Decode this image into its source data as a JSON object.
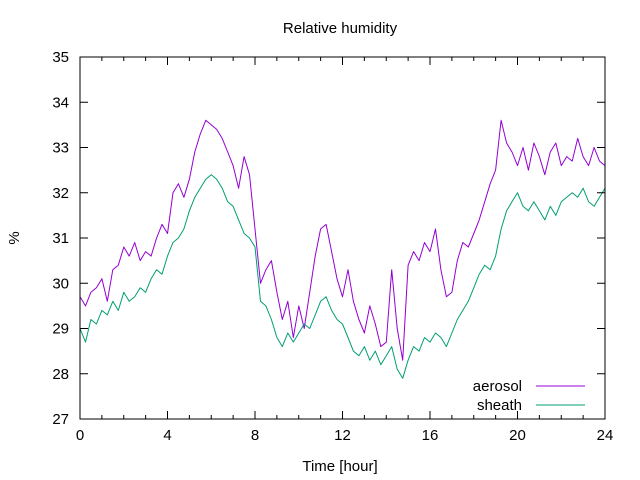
{
  "chart_data": {
    "type": "line",
    "title": "Relative humidity",
    "xlabel": "Time [hour]",
    "ylabel": "%",
    "xlim": [
      0,
      24
    ],
    "ylim": [
      27,
      35
    ],
    "xticks": [
      0,
      4,
      8,
      12,
      16,
      20,
      24
    ],
    "yticks": [
      27,
      28,
      29,
      30,
      31,
      32,
      33,
      34,
      35
    ],
    "grid": false,
    "legend": "bottom-right",
    "series": [
      {
        "name": "aerosol",
        "color": "#9400d3",
        "points": [
          [
            0.0,
            29.7
          ],
          [
            0.25,
            29.5
          ],
          [
            0.5,
            29.8
          ],
          [
            0.75,
            29.9
          ],
          [
            1.0,
            30.1
          ],
          [
            1.25,
            29.6
          ],
          [
            1.5,
            30.3
          ],
          [
            1.75,
            30.4
          ],
          [
            2.0,
            30.8
          ],
          [
            2.25,
            30.6
          ],
          [
            2.5,
            30.9
          ],
          [
            2.75,
            30.5
          ],
          [
            3.0,
            30.7
          ],
          [
            3.25,
            30.6
          ],
          [
            3.5,
            31.0
          ],
          [
            3.75,
            31.3
          ],
          [
            4.0,
            31.1
          ],
          [
            4.25,
            32.0
          ],
          [
            4.5,
            32.2
          ],
          [
            4.75,
            31.9
          ],
          [
            5.0,
            32.3
          ],
          [
            5.25,
            32.9
          ],
          [
            5.5,
            33.3
          ],
          [
            5.75,
            33.6
          ],
          [
            6.0,
            33.5
          ],
          [
            6.25,
            33.4
          ],
          [
            6.5,
            33.2
          ],
          [
            6.75,
            32.9
          ],
          [
            7.0,
            32.6
          ],
          [
            7.25,
            32.1
          ],
          [
            7.5,
            32.8
          ],
          [
            7.75,
            32.4
          ],
          [
            8.0,
            31.2
          ],
          [
            8.25,
            30.0
          ],
          [
            8.5,
            30.3
          ],
          [
            8.75,
            30.5
          ],
          [
            9.0,
            29.8
          ],
          [
            9.25,
            29.2
          ],
          [
            9.5,
            29.6
          ],
          [
            9.75,
            28.8
          ],
          [
            10.0,
            29.5
          ],
          [
            10.25,
            29.0
          ],
          [
            10.5,
            29.8
          ],
          [
            10.75,
            30.6
          ],
          [
            11.0,
            31.2
          ],
          [
            11.25,
            31.3
          ],
          [
            11.5,
            30.7
          ],
          [
            11.75,
            30.1
          ],
          [
            12.0,
            29.7
          ],
          [
            12.25,
            30.3
          ],
          [
            12.5,
            29.6
          ],
          [
            12.75,
            29.2
          ],
          [
            13.0,
            28.9
          ],
          [
            13.25,
            29.5
          ],
          [
            13.5,
            29.1
          ],
          [
            13.75,
            28.6
          ],
          [
            14.0,
            28.7
          ],
          [
            14.25,
            30.3
          ],
          [
            14.5,
            29.0
          ],
          [
            14.75,
            28.3
          ],
          [
            15.0,
            30.4
          ],
          [
            15.25,
            30.7
          ],
          [
            15.5,
            30.5
          ],
          [
            15.75,
            30.9
          ],
          [
            16.0,
            30.7
          ],
          [
            16.25,
            31.2
          ],
          [
            16.5,
            30.3
          ],
          [
            16.75,
            29.7
          ],
          [
            17.0,
            29.8
          ],
          [
            17.25,
            30.5
          ],
          [
            17.5,
            30.9
          ],
          [
            17.75,
            30.8
          ],
          [
            18.0,
            31.1
          ],
          [
            18.25,
            31.4
          ],
          [
            18.5,
            31.8
          ],
          [
            18.75,
            32.2
          ],
          [
            19.0,
            32.5
          ],
          [
            19.25,
            33.6
          ],
          [
            19.5,
            33.1
          ],
          [
            19.75,
            32.9
          ],
          [
            20.0,
            32.6
          ],
          [
            20.25,
            33.0
          ],
          [
            20.5,
            32.5
          ],
          [
            20.75,
            33.1
          ],
          [
            21.0,
            32.8
          ],
          [
            21.25,
            32.4
          ],
          [
            21.5,
            32.9
          ],
          [
            21.75,
            33.1
          ],
          [
            22.0,
            32.6
          ],
          [
            22.25,
            32.8
          ],
          [
            22.5,
            32.7
          ],
          [
            22.75,
            33.2
          ],
          [
            23.0,
            32.8
          ],
          [
            23.25,
            32.6
          ],
          [
            23.5,
            33.0
          ],
          [
            23.75,
            32.7
          ],
          [
            24.0,
            32.6
          ]
        ]
      },
      {
        "name": "sheath",
        "color": "#009e73",
        "points": [
          [
            0.0,
            29.0
          ],
          [
            0.25,
            28.7
          ],
          [
            0.5,
            29.2
          ],
          [
            0.75,
            29.1
          ],
          [
            1.0,
            29.4
          ],
          [
            1.25,
            29.3
          ],
          [
            1.5,
            29.6
          ],
          [
            1.75,
            29.4
          ],
          [
            2.0,
            29.8
          ],
          [
            2.25,
            29.6
          ],
          [
            2.5,
            29.7
          ],
          [
            2.75,
            29.9
          ],
          [
            3.0,
            29.8
          ],
          [
            3.25,
            30.1
          ],
          [
            3.5,
            30.3
          ],
          [
            3.75,
            30.2
          ],
          [
            4.0,
            30.6
          ],
          [
            4.25,
            30.9
          ],
          [
            4.5,
            31.0
          ],
          [
            4.75,
            31.2
          ],
          [
            5.0,
            31.6
          ],
          [
            5.25,
            31.9
          ],
          [
            5.5,
            32.1
          ],
          [
            5.75,
            32.3
          ],
          [
            6.0,
            32.4
          ],
          [
            6.25,
            32.3
          ],
          [
            6.5,
            32.1
          ],
          [
            6.75,
            31.8
          ],
          [
            7.0,
            31.7
          ],
          [
            7.25,
            31.4
          ],
          [
            7.5,
            31.1
          ],
          [
            7.75,
            31.0
          ],
          [
            8.0,
            30.8
          ],
          [
            8.25,
            29.6
          ],
          [
            8.5,
            29.5
          ],
          [
            8.75,
            29.2
          ],
          [
            9.0,
            28.8
          ],
          [
            9.25,
            28.6
          ],
          [
            9.5,
            28.9
          ],
          [
            9.75,
            28.7
          ],
          [
            10.0,
            28.9
          ],
          [
            10.25,
            29.1
          ],
          [
            10.5,
            29.0
          ],
          [
            10.75,
            29.3
          ],
          [
            11.0,
            29.6
          ],
          [
            11.25,
            29.7
          ],
          [
            11.5,
            29.4
          ],
          [
            11.75,
            29.2
          ],
          [
            12.0,
            29.1
          ],
          [
            12.25,
            28.8
          ],
          [
            12.5,
            28.5
          ],
          [
            12.75,
            28.4
          ],
          [
            13.0,
            28.6
          ],
          [
            13.25,
            28.3
          ],
          [
            13.5,
            28.5
          ],
          [
            13.75,
            28.2
          ],
          [
            14.0,
            28.4
          ],
          [
            14.25,
            28.6
          ],
          [
            14.5,
            28.1
          ],
          [
            14.75,
            27.9
          ],
          [
            15.0,
            28.3
          ],
          [
            15.25,
            28.6
          ],
          [
            15.5,
            28.5
          ],
          [
            15.75,
            28.8
          ],
          [
            16.0,
            28.7
          ],
          [
            16.25,
            28.9
          ],
          [
            16.5,
            28.8
          ],
          [
            16.75,
            28.6
          ],
          [
            17.0,
            28.9
          ],
          [
            17.25,
            29.2
          ],
          [
            17.5,
            29.4
          ],
          [
            17.75,
            29.6
          ],
          [
            18.0,
            29.9
          ],
          [
            18.25,
            30.2
          ],
          [
            18.5,
            30.4
          ],
          [
            18.75,
            30.3
          ],
          [
            19.0,
            30.6
          ],
          [
            19.25,
            31.2
          ],
          [
            19.5,
            31.6
          ],
          [
            19.75,
            31.8
          ],
          [
            20.0,
            32.0
          ],
          [
            20.25,
            31.7
          ],
          [
            20.5,
            31.6
          ],
          [
            20.75,
            31.8
          ],
          [
            21.0,
            31.6
          ],
          [
            21.25,
            31.4
          ],
          [
            21.5,
            31.7
          ],
          [
            21.75,
            31.5
          ],
          [
            22.0,
            31.8
          ],
          [
            22.25,
            31.9
          ],
          [
            22.5,
            32.0
          ],
          [
            22.75,
            31.9
          ],
          [
            23.0,
            32.1
          ],
          [
            23.25,
            31.8
          ],
          [
            23.5,
            31.7
          ],
          [
            23.75,
            31.9
          ],
          [
            24.0,
            32.1
          ]
        ]
      }
    ]
  }
}
